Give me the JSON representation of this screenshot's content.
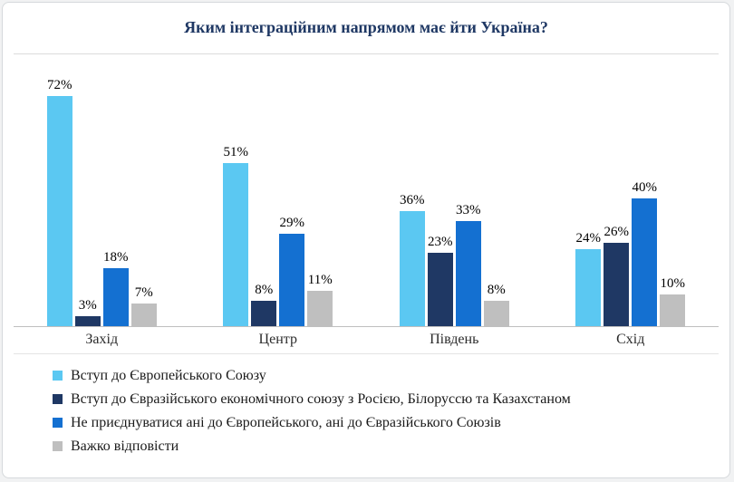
{
  "chart_data": {
    "type": "bar",
    "title": "Яким інтеграційним напрямом має йти Україна?",
    "categories": [
      "Захід",
      "Центр",
      "Південь",
      "Схід"
    ],
    "series": [
      {
        "name": "Вступ до Європейського Союзу",
        "color": "#5BC8F2",
        "values": [
          72,
          51,
          36,
          24
        ]
      },
      {
        "name": "Вступ до Євразійського економічного союзу  з Росією, Білоруссю та Казахстаном",
        "color": "#1F3864",
        "values": [
          3,
          8,
          23,
          26
        ]
      },
      {
        "name": "Не приєднуватися ані до Європейського, ані до Євразійського Союзів",
        "color": "#1470D1",
        "values": [
          18,
          29,
          33,
          40
        ]
      },
      {
        "name": "Важко відповісти",
        "color": "#BFBFBF",
        "values": [
          7,
          11,
          8,
          10
        ]
      }
    ],
    "value_suffix": "%",
    "xlabel": "",
    "ylabel": "",
    "ylim": [
      0,
      85
    ],
    "grid": false,
    "legend_position": "bottom"
  }
}
